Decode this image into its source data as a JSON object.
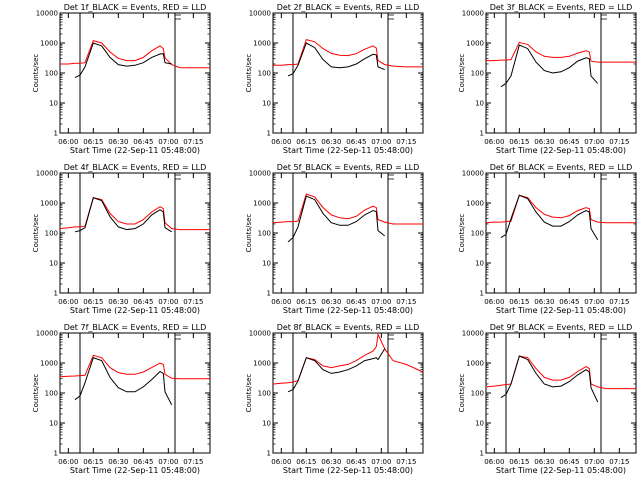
{
  "chart_data": {
    "type": "line",
    "y_scale": "log",
    "ylim": [
      1,
      10000
    ],
    "xlim": [
      "05:55",
      "07:25"
    ],
    "x_ticks": [
      "06:00",
      "06:15",
      "06:30",
      "06:45",
      "07:00",
      "07:15"
    ],
    "y_ticks": [
      "1",
      "10",
      "100",
      "1000",
      "10000"
    ],
    "xlabel": "Start Time (22-Sep-11 05:48:00)",
    "ylabel": "Counts/sec",
    "series_colors": {
      "events": "#000000",
      "lld": "#ff0000"
    },
    "marker_lines": [
      "06:07",
      "07:04"
    ],
    "x_minutes": [
      0,
      5,
      9,
      12,
      15,
      20,
      25,
      30,
      35,
      40,
      45,
      50,
      55,
      60,
      62,
      63,
      67,
      72,
      80,
      90
    ],
    "panels": [
      {
        "title": "Det 1f_BLACK = Events, RED = LLD",
        "events": [
          null,
          null,
          70,
          85,
          160,
          1000,
          800,
          330,
          190,
          170,
          180,
          220,
          330,
          430,
          440,
          220,
          200,
          null,
          null,
          null
        ],
        "lld": [
          200,
          200,
          210,
          210,
          220,
          1200,
          1000,
          500,
          310,
          260,
          260,
          330,
          550,
          800,
          650,
          320,
          190,
          150,
          150,
          150
        ]
      },
      {
        "title": "Det 2f_BLACK = Events, RED = LLD",
        "events": [
          null,
          null,
          80,
          95,
          180,
          1000,
          700,
          280,
          160,
          150,
          160,
          200,
          300,
          420,
          400,
          160,
          130,
          null,
          null,
          null
        ],
        "lld": [
          180,
          180,
          190,
          190,
          200,
          1300,
          1100,
          650,
          450,
          390,
          380,
          440,
          620,
          800,
          680,
          260,
          190,
          170,
          160,
          160
        ]
      },
      {
        "title": "Det 3f_BLACK = Events, RED = LLD",
        "events": [
          null,
          null,
          35,
          45,
          80,
          850,
          650,
          230,
          120,
          100,
          110,
          150,
          250,
          320,
          300,
          80,
          45,
          null,
          null,
          null
        ],
        "lld": [
          260,
          260,
          270,
          270,
          280,
          1050,
          900,
          500,
          360,
          330,
          330,
          360,
          460,
          550,
          500,
          250,
          230,
          230,
          230,
          230
        ]
      },
      {
        "title": "Det 4f_BLACK = Events, RED = LLD",
        "events": [
          null,
          null,
          110,
          120,
          150,
          1500,
          1200,
          350,
          160,
          130,
          140,
          200,
          400,
          600,
          500,
          150,
          110,
          null,
          null,
          null
        ],
        "lld": [
          140,
          150,
          160,
          160,
          170,
          1500,
          1300,
          450,
          240,
          200,
          200,
          280,
          500,
          750,
          650,
          220,
          140,
          130,
          130,
          130
        ]
      },
      {
        "title": "Det 5f_BLACK = Events, RED = LLD",
        "events": [
          null,
          null,
          50,
          70,
          160,
          1700,
          1300,
          450,
          220,
          180,
          180,
          240,
          400,
          560,
          520,
          120,
          80,
          null,
          null,
          null
        ],
        "lld": [
          220,
          230,
          240,
          240,
          250,
          2000,
          1600,
          700,
          400,
          320,
          300,
          360,
          580,
          780,
          700,
          280,
          230,
          200,
          200,
          200
        ]
      },
      {
        "title": "Det 6f_BLACK = Events, RED = LLD",
        "events": [
          null,
          null,
          70,
          90,
          300,
          1800,
          1400,
          500,
          230,
          170,
          170,
          240,
          400,
          560,
          500,
          140,
          60,
          null,
          null,
          null
        ],
        "lld": [
          220,
          230,
          230,
          240,
          250,
          1800,
          1500,
          700,
          420,
          340,
          320,
          380,
          560,
          700,
          650,
          280,
          230,
          220,
          220,
          220
        ]
      },
      {
        "title": "Det 7f_BLACK = Events, RED = LLD",
        "events": [
          null,
          null,
          60,
          80,
          220,
          1500,
          1200,
          330,
          150,
          110,
          110,
          160,
          280,
          520,
          450,
          110,
          40,
          null,
          null,
          null
        ],
        "lld": [
          350,
          360,
          370,
          380,
          390,
          1800,
          1500,
          700,
          480,
          420,
          420,
          500,
          700,
          1000,
          900,
          420,
          310,
          300,
          300,
          300
        ]
      },
      {
        "title": "Det 8f_BLACK = Events, RED = LLD",
        "events": [
          null,
          null,
          110,
          130,
          250,
          1500,
          1200,
          600,
          450,
          500,
          600,
          800,
          1200,
          1400,
          1500,
          1300,
          3000,
          null,
          null,
          null
        ],
        "lld": [
          200,
          210,
          220,
          230,
          260,
          1500,
          1300,
          800,
          700,
          800,
          900,
          1200,
          1800,
          2500,
          3500,
          9000,
          3000,
          1200,
          900,
          500
        ]
      },
      {
        "title": "Det 9f_BLACK = Events, RED = LLD",
        "events": [
          null,
          null,
          70,
          90,
          200,
          1700,
          1300,
          450,
          200,
          160,
          170,
          240,
          400,
          600,
          500,
          150,
          50,
          null,
          null,
          null
        ],
        "lld": [
          160,
          170,
          180,
          190,
          200,
          1700,
          1500,
          650,
          330,
          270,
          270,
          330,
          520,
          760,
          650,
          200,
          160,
          140,
          140,
          140
        ]
      }
    ]
  }
}
